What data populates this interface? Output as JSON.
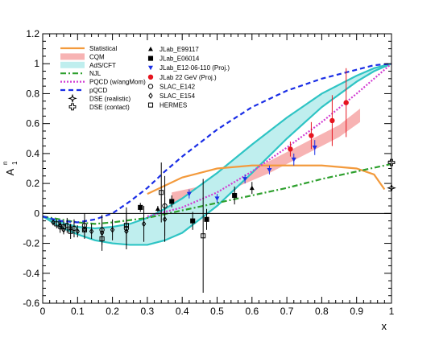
{
  "chart_data": {
    "type": "scatter",
    "title": "",
    "xlabel": "x",
    "ylabel_main": "A",
    "ylabel_sub": "1",
    "ylabel_sup": "n",
    "xlim": [
      0,
      1
    ],
    "ylim": [
      -0.6,
      1.2
    ],
    "grid": false,
    "legend_position": "top-left",
    "xticks": [
      "0",
      "0.1",
      "0.2",
      "0.3",
      "0.4",
      "0.5",
      "0.6",
      "0.7",
      "0.8",
      "0.9",
      "1"
    ],
    "yticks": [
      "-0.6",
      "-0.4",
      "-0.2",
      "0",
      "0.2",
      "0.4",
      "0.6",
      "0.8",
      "1",
      "1.2"
    ],
    "legend_left": [
      {
        "label": "Statistical",
        "style": "line",
        "color": "#f39a3c"
      },
      {
        "label": "CQM",
        "style": "band",
        "color": "#f7b3b3"
      },
      {
        "label": "AdS/CFT",
        "style": "band",
        "color": "#bfeeee"
      },
      {
        "label": "NJL",
        "style": "dashdot",
        "color": "#2ea02e"
      },
      {
        "label": "PQCD (w/angMom)",
        "style": "dotted",
        "color": "#d23bd2"
      },
      {
        "label": "pQCD",
        "style": "dashed",
        "color": "#1a2ee6"
      },
      {
        "label": "DSE (realistic)",
        "style": "star",
        "color": "#000000"
      },
      {
        "label": "DSE (contact)",
        "style": "cross",
        "color": "#000000"
      }
    ],
    "legend_right": [
      {
        "label": "JLab_E99117",
        "style": "triangle",
        "color": "#000000"
      },
      {
        "label": "JLab_E06014",
        "style": "square",
        "color": "#000000"
      },
      {
        "label": "JLab_E12-06-110 (Proj.)",
        "style": "triangle-down",
        "color": "#1a2ee6"
      },
      {
        "label": "JLab 22 GeV (Proj.)",
        "style": "circle",
        "color": "#e6151f"
      },
      {
        "label": "SLAC_E142",
        "style": "open-circle",
        "color": "#000000"
      },
      {
        "label": "SLAC_E154",
        "style": "open-diamond",
        "color": "#000000"
      },
      {
        "label": "HERMES",
        "style": "open-square",
        "color": "#000000"
      }
    ],
    "series": [
      {
        "name": "Statistical",
        "kind": "curve",
        "color": "#f39a3c",
        "x": [
          0.3,
          0.4,
          0.5,
          0.6,
          0.7,
          0.8,
          0.9,
          0.95,
          0.98
        ],
        "y": [
          0.13,
          0.24,
          0.3,
          0.32,
          0.32,
          0.32,
          0.3,
          0.26,
          0.16
        ]
      },
      {
        "name": "CQM",
        "kind": "band",
        "color": "#f7b3b3",
        "x": [
          0.37,
          0.45,
          0.55,
          0.65,
          0.75,
          0.85,
          0.91
        ],
        "y_low": [
          0.06,
          0.1,
          0.17,
          0.27,
          0.39,
          0.51,
          0.61
        ],
        "y_high": [
          0.14,
          0.18,
          0.25,
          0.35,
          0.47,
          0.59,
          0.7
        ]
      },
      {
        "name": "AdS/CFT",
        "kind": "band",
        "color": "#bfeeee",
        "x": [
          0.0,
          0.05,
          0.1,
          0.15,
          0.2,
          0.25,
          0.3,
          0.35,
          0.4,
          0.5,
          0.6,
          0.7,
          0.8,
          0.9,
          0.95,
          1.0
        ],
        "y_low": [
          -0.02,
          -0.09,
          -0.14,
          -0.18,
          -0.2,
          -0.21,
          -0.21,
          -0.18,
          -0.13,
          0.05,
          0.27,
          0.5,
          0.71,
          0.88,
          0.95,
          1.0
        ],
        "y_high": [
          -0.02,
          -0.06,
          -0.09,
          -0.1,
          -0.09,
          -0.07,
          -0.03,
          0.03,
          0.1,
          0.27,
          0.46,
          0.64,
          0.8,
          0.92,
          0.97,
          1.0
        ]
      },
      {
        "name": "NJL",
        "kind": "curve",
        "color": "#2ea02e",
        "x": [
          0.0,
          0.05,
          0.1,
          0.15,
          0.2,
          0.3,
          0.4,
          0.5,
          0.6,
          0.7,
          0.8,
          0.9,
          1.0
        ],
        "y": [
          -0.02,
          -0.04,
          -0.06,
          -0.07,
          -0.06,
          -0.03,
          0.02,
          0.07,
          0.12,
          0.17,
          0.23,
          0.28,
          0.33
        ]
      },
      {
        "name": "PQCD (w/angMom)",
        "kind": "curve",
        "color": "#d23bd2",
        "x": [
          0.3,
          0.4,
          0.5,
          0.6,
          0.7,
          0.8,
          0.9,
          0.95,
          1.0
        ],
        "y": [
          -0.02,
          0.04,
          0.14,
          0.28,
          0.44,
          0.61,
          0.8,
          0.9,
          1.0
        ]
      },
      {
        "name": "pQCD",
        "kind": "curve",
        "color": "#1a2ee6",
        "x": [
          0.0,
          0.05,
          0.1,
          0.15,
          0.2,
          0.25,
          0.3,
          0.35,
          0.4,
          0.45,
          0.5,
          0.6,
          0.7,
          0.8,
          0.9,
          0.95,
          1.0
        ],
        "y": [
          -0.02,
          -0.05,
          -0.06,
          -0.04,
          0.0,
          0.08,
          0.17,
          0.28,
          0.38,
          0.47,
          0.56,
          0.71,
          0.82,
          0.9,
          0.96,
          0.99,
          1.0
        ]
      },
      {
        "name": "JLab_E99117",
        "kind": "points",
        "marker": "triangle",
        "color": "#000000",
        "x": [
          0.33,
          0.47,
          0.6
        ],
        "y": [
          0.03,
          -0.04,
          0.17
        ],
        "err": [
          0.02,
          0.03,
          0.04
        ]
      },
      {
        "name": "JLab_E06014",
        "kind": "points",
        "marker": "square",
        "color": "#000000",
        "x": [
          0.28,
          0.37,
          0.43,
          0.47,
          0.55
        ],
        "y": [
          0.04,
          0.08,
          -0.05,
          -0.04,
          0.12
        ],
        "err": [
          0.03,
          0.04,
          0.06,
          0.07,
          0.06
        ]
      },
      {
        "name": "JLab_E12-06-110 (Proj.)",
        "kind": "points",
        "marker": "triangle-down",
        "color": "#1a2ee6",
        "x": [
          0.42,
          0.5,
          0.58,
          0.65,
          0.72,
          0.78
        ],
        "y": [
          0.13,
          0.1,
          0.23,
          0.29,
          0.36,
          0.44
        ],
        "err": [
          0.03,
          0.03,
          0.03,
          0.03,
          0.04,
          0.05
        ]
      },
      {
        "name": "JLab 22 GeV (Proj.)",
        "kind": "points",
        "marker": "circle",
        "color": "#e6151f",
        "x": [
          0.71,
          0.77,
          0.83,
          0.87
        ],
        "y": [
          0.43,
          0.52,
          0.62,
          0.74
        ],
        "err": [
          0.05,
          0.09,
          0.17,
          0.23
        ]
      },
      {
        "name": "SLAC_E142",
        "kind": "points",
        "marker": "open-circle",
        "color": "#000000",
        "x": [
          0.05,
          0.07,
          0.09,
          0.12,
          0.17,
          0.24,
          0.35
        ],
        "y": [
          -0.09,
          -0.08,
          -0.1,
          -0.08,
          -0.11,
          -0.1,
          0.05
        ],
        "err": [
          0.04,
          0.05,
          0.06,
          0.08,
          0.1,
          0.14,
          0.2
        ]
      },
      {
        "name": "SLAC_E154",
        "kind": "points",
        "marker": "open-diamond",
        "color": "#000000",
        "x": [
          0.03,
          0.05,
          0.06,
          0.08,
          0.1,
          0.12,
          0.14,
          0.17,
          0.2,
          0.24,
          0.29,
          0.35
        ],
        "y": [
          -0.06,
          -0.08,
          -0.11,
          -0.1,
          -0.12,
          -0.11,
          -0.12,
          -0.13,
          -0.11,
          -0.12,
          -0.07,
          -0.04
        ],
        "err": [
          0.02,
          0.03,
          0.03,
          0.03,
          0.04,
          0.05,
          0.05,
          0.06,
          0.07,
          0.09,
          0.12,
          0.15
        ]
      },
      {
        "name": "HERMES",
        "kind": "points",
        "marker": "open-square",
        "color": "#000000",
        "x": [
          0.04,
          0.06,
          0.08,
          0.12,
          0.17,
          0.24,
          0.34,
          0.46
        ],
        "y": [
          -0.07,
          -0.09,
          -0.12,
          -0.11,
          -0.17,
          -0.08,
          0.14,
          -0.15
        ],
        "err": [
          0.03,
          0.04,
          0.05,
          0.06,
          0.08,
          0.1,
          0.2,
          0.38
        ]
      },
      {
        "name": "DSE (realistic)",
        "kind": "points",
        "marker": "star",
        "color": "#000000",
        "x": [
          1.0
        ],
        "y": [
          0.17
        ],
        "err": [
          0
        ]
      },
      {
        "name": "DSE (contact)",
        "kind": "points",
        "marker": "cross",
        "color": "#000000",
        "x": [
          1.0
        ],
        "y": [
          0.34
        ],
        "err": [
          0
        ]
      }
    ]
  }
}
